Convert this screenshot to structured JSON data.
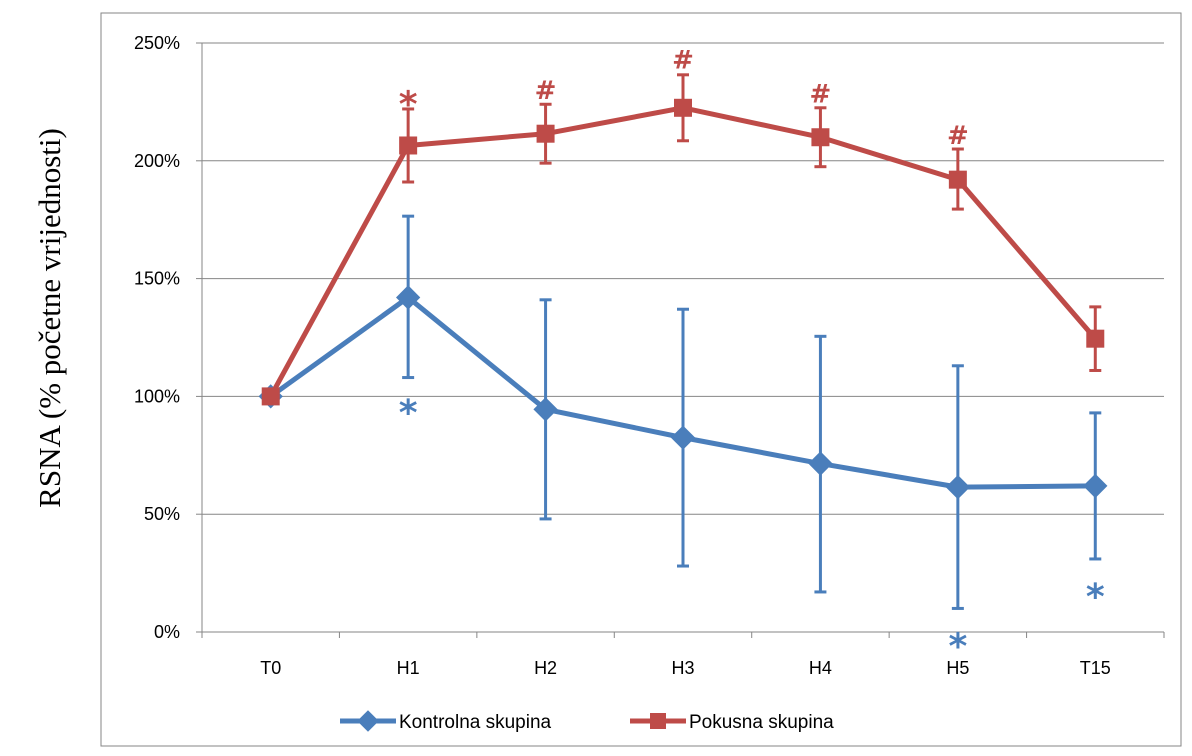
{
  "chart_data": {
    "type": "line",
    "categories": [
      "T0",
      "H1",
      "H2",
      "H3",
      "H4",
      "H5",
      "T15"
    ],
    "ylabel": "RSNA (% početne vrijednosti)",
    "ylim": [
      0,
      250
    ],
    "yticks": [
      "0%",
      "50%",
      "100%",
      "150%",
      "200%",
      "250%"
    ],
    "grid": true,
    "legend_position": "bottom",
    "series": [
      {
        "name": "Kontrolna skupina",
        "color": "#4a7ebb",
        "marker": "diamond",
        "values": [
          100,
          142,
          94.5,
          82.5,
          71.5,
          61.5,
          62
        ],
        "err_low": [
          null,
          108,
          48,
          28,
          17,
          10,
          31
        ],
        "err_high": [
          null,
          176.5,
          141,
          137,
          125.5,
          113,
          93
        ],
        "annotations": [
          {
            "category": "H1",
            "text": "*",
            "y": 98
          },
          {
            "category": "H5",
            "text": "*",
            "y": -1
          },
          {
            "category": "T15",
            "text": "*",
            "y": 20
          }
        ]
      },
      {
        "name": "Pokusna skupina",
        "color": "#be4b48",
        "marker": "square",
        "values": [
          100,
          206.5,
          211.5,
          222.5,
          210,
          192,
          124.5
        ],
        "err_low": [
          null,
          191,
          199,
          208.5,
          197.5,
          179.5,
          111
        ],
        "err_high": [
          null,
          222,
          224,
          236.5,
          222.5,
          205,
          138
        ],
        "annotations": [
          {
            "category": "H1",
            "text": "*",
            "y": 229
          },
          {
            "category": "H2",
            "text": "#",
            "y": 230
          },
          {
            "category": "H3",
            "text": "#",
            "y": 243
          },
          {
            "category": "H4",
            "text": "#",
            "y": 228.5
          },
          {
            "category": "H5",
            "text": "#",
            "y": 211
          }
        ]
      }
    ]
  }
}
